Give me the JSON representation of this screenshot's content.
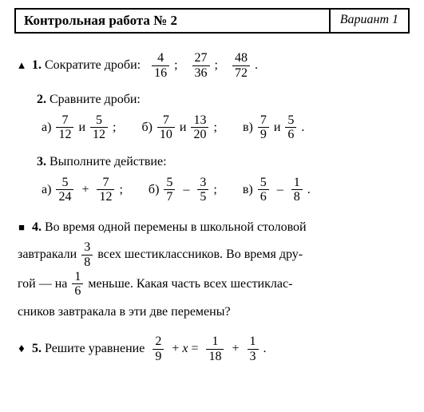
{
  "header": {
    "title": "Контрольная работа № 2",
    "variant": "Вариант 1"
  },
  "markers": {
    "triangle": "▲",
    "square": "■",
    "diamond": "♦"
  },
  "p1": {
    "num": "1.",
    "text": "Сократите дроби:",
    "f1n": "4",
    "f1d": "16",
    "f2n": "27",
    "f2d": "36",
    "f3n": "48",
    "f3d": "72"
  },
  "p2": {
    "num": "2.",
    "text": "Сравните дроби:",
    "a": "а)",
    "b": "б)",
    "c": "в)",
    "and": "и",
    "a1n": "7",
    "a1d": "12",
    "a2n": "5",
    "a2d": "12",
    "b1n": "7",
    "b1d": "10",
    "b2n": "13",
    "b2d": "20",
    "c1n": "7",
    "c1d": "9",
    "c2n": "5",
    "c2d": "6"
  },
  "p3": {
    "num": "3.",
    "text": "Выполните действие:",
    "a": "а)",
    "b": "б)",
    "c": "в)",
    "a1n": "5",
    "a1d": "24",
    "a2n": "7",
    "a2d": "12",
    "b1n": "5",
    "b1d": "7",
    "b2n": "3",
    "b2d": "5",
    "c1n": "5",
    "c1d": "6",
    "c2n": "1",
    "c2d": "8"
  },
  "p4": {
    "num": "4.",
    "l1a": "Во время одной перемены в школьной столовой",
    "l2a": "завтракали",
    "f1n": "3",
    "f1d": "8",
    "l2b": "всех шестиклассников. Во время дру-",
    "l3a": "гой — на",
    "f2n": "1",
    "f2d": "6",
    "l3b": "меньше. Какая часть всех шестиклас-",
    "l4": "сников завтракала в эти две перемены?"
  },
  "p5": {
    "num": "5.",
    "text": "Решите уравнение",
    "f1n": "2",
    "f1d": "9",
    "plus": "+",
    "x": "x",
    "eq": "=",
    "f2n": "1",
    "f2d": "18",
    "f3n": "1",
    "f3d": "3"
  }
}
